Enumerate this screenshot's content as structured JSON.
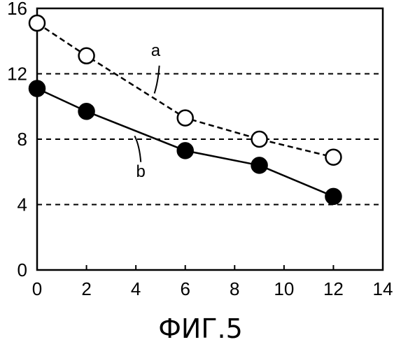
{
  "chart_data": {
    "type": "line",
    "title": "",
    "xlabel": "",
    "ylabel": "",
    "xlim": [
      0,
      14
    ],
    "ylim": [
      0,
      16
    ],
    "xticks": [
      0,
      2,
      4,
      6,
      8,
      10,
      12,
      14
    ],
    "yticks": [
      0,
      4,
      8,
      12,
      16
    ],
    "gridlines_y": [
      4,
      8,
      12
    ],
    "series": [
      {
        "name": "a",
        "x": [
          0,
          2,
          6,
          9,
          12
        ],
        "y": [
          15.1,
          13.1,
          9.3,
          8.0,
          6.9
        ],
        "line_style": "dashed",
        "marker": "open-circle",
        "color": "#000000"
      },
      {
        "name": "b",
        "x": [
          0,
          2,
          6,
          9,
          12
        ],
        "y": [
          11.1,
          9.7,
          7.3,
          6.4,
          4.5
        ],
        "line_style": "solid",
        "marker": "filled-circle",
        "color": "#000000"
      }
    ]
  },
  "caption": "ФИГ.5"
}
